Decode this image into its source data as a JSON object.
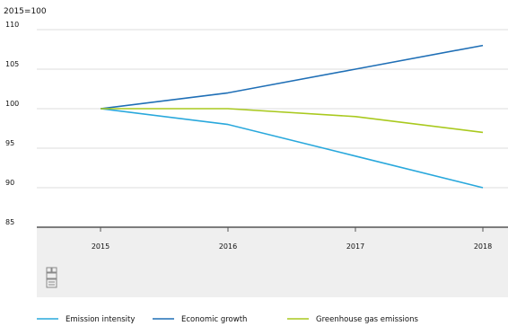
{
  "chart_data": {
    "type": "line",
    "unit_label": "2015=100",
    "x": [
      "2015",
      "2016",
      "2017",
      "2018"
    ],
    "ylim": [
      85,
      110
    ],
    "yticks": [
      85,
      90,
      95,
      100,
      105,
      110
    ],
    "grid": true,
    "legend_position": "bottom",
    "series": [
      {
        "name": "Emission intensity",
        "color": "#29a8dc",
        "values": [
          100,
          98,
          94,
          90
        ]
      },
      {
        "name": "Economic growth",
        "color": "#1f6fb6",
        "values": [
          100,
          102,
          105,
          108
        ]
      },
      {
        "name": "Greenhouse gas emissions",
        "color": "#a9c91e",
        "values": [
          100,
          100,
          99,
          97
        ]
      }
    ]
  },
  "logo": {
    "icon": "cbs-logo-icon"
  }
}
